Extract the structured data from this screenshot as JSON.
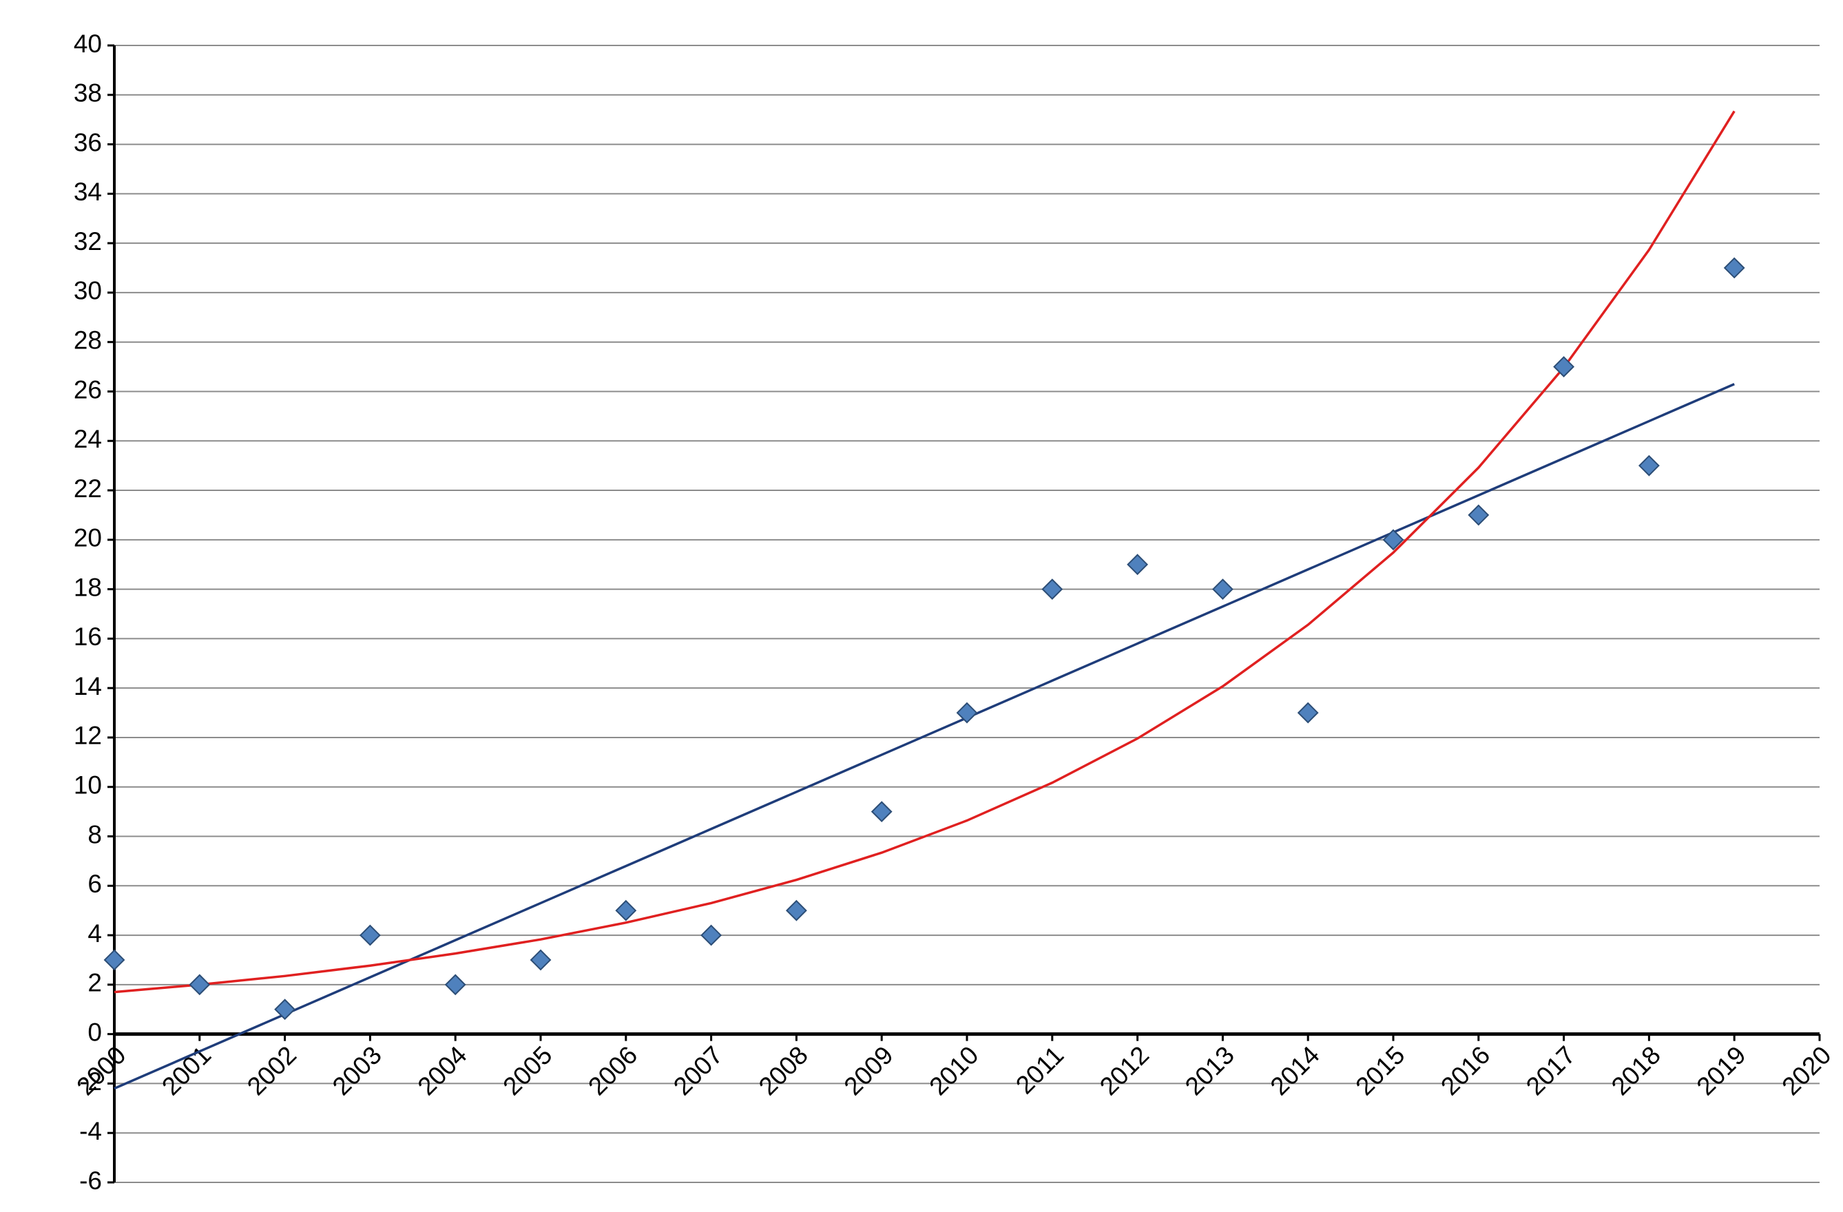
{
  "chart_data": {
    "type": "scatter",
    "x": [
      2000,
      2001,
      2002,
      2003,
      2004,
      2005,
      2006,
      2007,
      2008,
      2009,
      2010,
      2011,
      2012,
      2013,
      2014,
      2015,
      2016,
      2017,
      2018,
      2019
    ],
    "series": [
      {
        "style": "markers",
        "color": "#4f81bd",
        "values": [
          3,
          2,
          1,
          4,
          2,
          3,
          5,
          4,
          5,
          9,
          13,
          18,
          19,
          18,
          13,
          20,
          21,
          27,
          23,
          31
        ]
      },
      {
        "style": "line",
        "color": "#1f3d7a",
        "values": [
          -2.2,
          -0.7,
          0.8,
          2.3,
          3.8,
          5.3,
          6.8,
          8.3,
          9.8,
          11.3,
          12.8,
          14.3,
          15.8,
          17.3,
          18.8,
          20.3,
          21.8,
          23.3,
          24.8,
          26.3
        ]
      },
      {
        "style": "line",
        "color": "#e02020",
        "values": [
          1.7,
          2.0,
          2.35,
          2.77,
          3.26,
          3.83,
          4.51,
          5.3,
          6.24,
          7.34,
          8.64,
          10.17,
          11.96,
          14.07,
          16.56,
          19.48,
          22.92,
          26.97,
          31.73,
          37.34
        ]
      }
    ],
    "xlim": [
      2000,
      2020
    ],
    "xticks": [
      2000,
      2001,
      2002,
      2003,
      2004,
      2005,
      2006,
      2007,
      2008,
      2009,
      2010,
      2011,
      2012,
      2013,
      2014,
      2015,
      2016,
      2017,
      2018,
      2019,
      2020
    ],
    "ylim": [
      -6,
      40
    ],
    "yticks": [
      -6,
      -4,
      -2,
      0,
      2,
      4,
      6,
      8,
      10,
      12,
      14,
      16,
      18,
      20,
      22,
      24,
      26,
      28,
      30,
      32,
      34,
      36,
      38,
      40
    ],
    "grid": true
  }
}
